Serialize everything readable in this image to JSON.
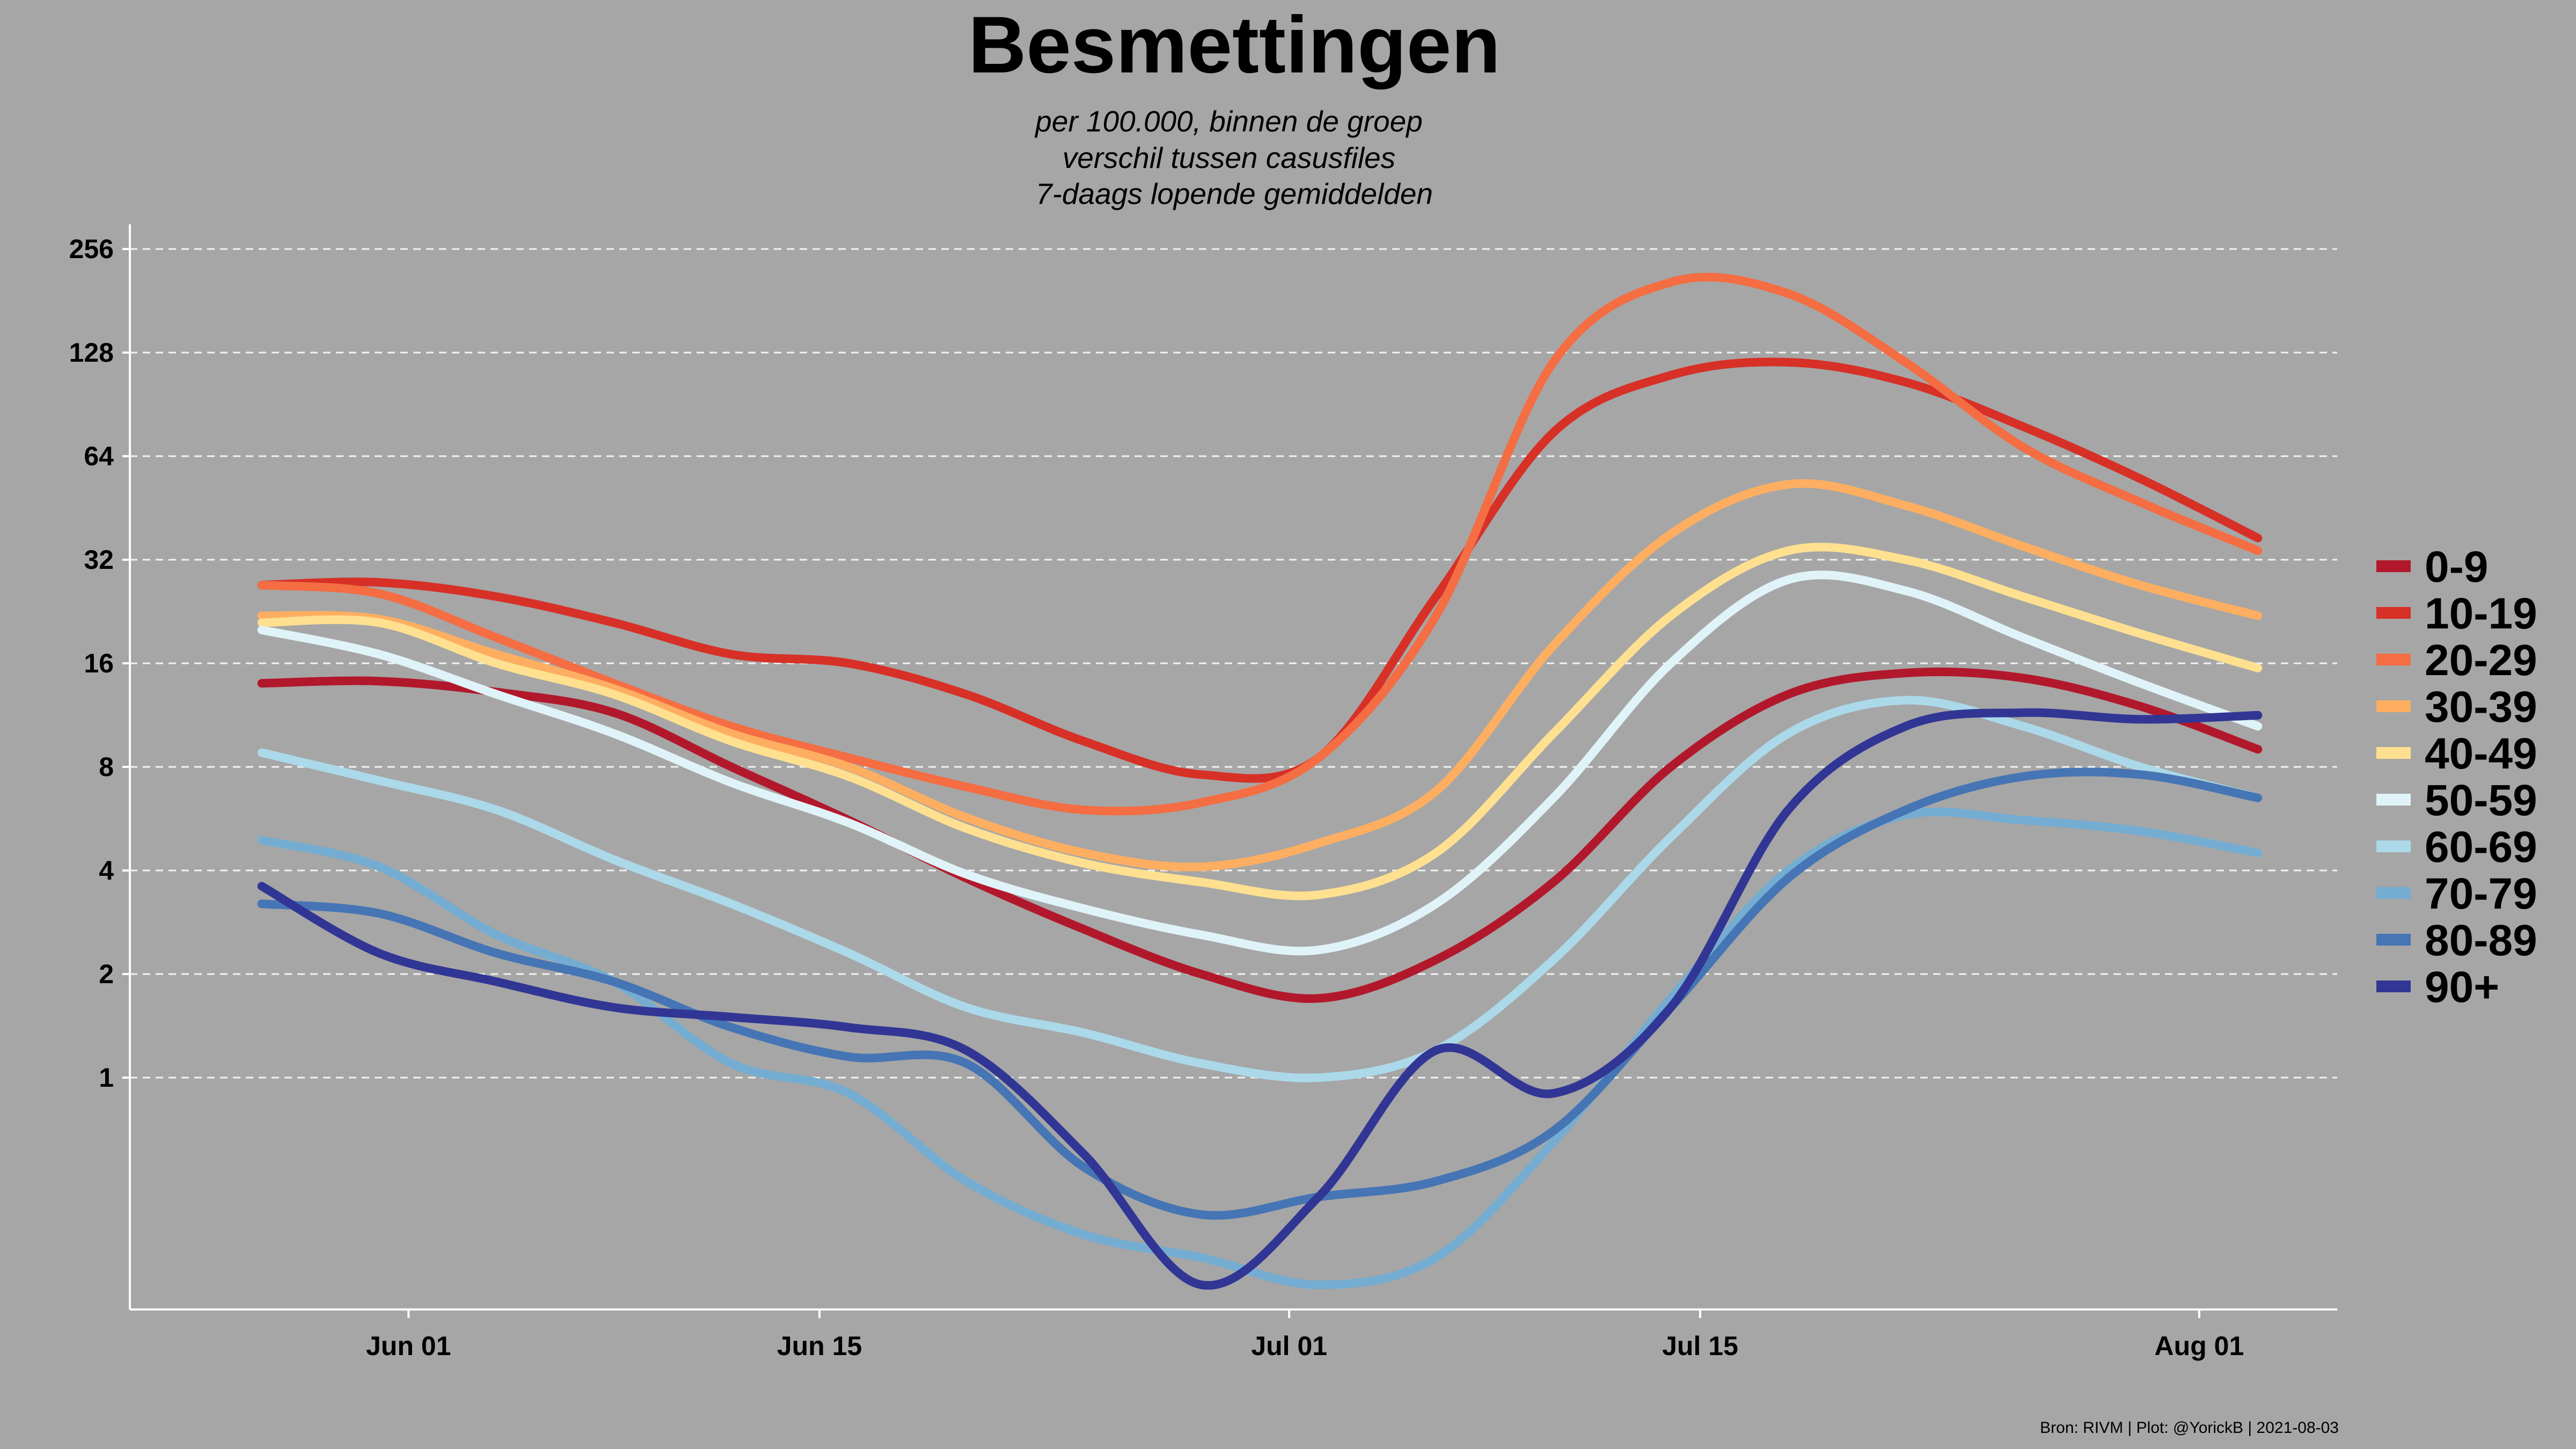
{
  "chart_data": {
    "type": "line",
    "title": "Besmettingen",
    "subtitle": [
      "per 100.000, binnen de groep",
      "verschil tussen casusfiles",
      "7-daags lopende gemiddelden"
    ],
    "caption": "Bron: RIVM | Plot: @YorickB  |  2021-08-03",
    "y_scale": "log2",
    "y_ticks": [
      1,
      2,
      4,
      8,
      16,
      32,
      64,
      128,
      256
    ],
    "y_tick_labels": [
      "1",
      "2",
      "4",
      "8",
      "16",
      "32",
      "64",
      "128",
      "256"
    ],
    "ylim": [
      0.1,
      320
    ],
    "x_start": "2021-05-26",
    "x_ticks": [
      {
        "date": "2021-06-01",
        "label": "Jun 01"
      },
      {
        "date": "2021-06-15",
        "label": "Jun 15"
      },
      {
        "date": "2021-07-01",
        "label": "Jul 01"
      },
      {
        "date": "2021-07-15",
        "label": "Jul 15"
      },
      {
        "date": "2021-08-01",
        "label": "Aug 01"
      }
    ],
    "xlim": [
      "2021-05-22",
      "2021-08-06"
    ],
    "grid": "horizontal dashed",
    "legend_position": "right",
    "x": [
      "2021-05-27",
      "2021-05-31",
      "2021-06-04",
      "2021-06-08",
      "2021-06-12",
      "2021-06-16",
      "2021-06-20",
      "2021-06-24",
      "2021-06-28",
      "2021-07-02",
      "2021-07-06",
      "2021-07-10",
      "2021-07-14",
      "2021-07-18",
      "2021-07-22",
      "2021-07-26",
      "2021-07-30",
      "2021-08-03"
    ],
    "series": [
      {
        "name": "0-9",
        "color": "#b2182b",
        "values": [
          14.0,
          14.2,
          13.2,
          11.5,
          8.0,
          5.6,
          3.8,
          2.7,
          2.0,
          1.7,
          2.2,
          3.7,
          8.0,
          13.0,
          15.0,
          14.5,
          12.0,
          9.0
        ]
      },
      {
        "name": "10-19",
        "color": "#d73027",
        "values": [
          27.0,
          27.5,
          25.0,
          21.0,
          17.0,
          16.0,
          13.0,
          9.5,
          7.6,
          8.5,
          25.0,
          75.0,
          110.0,
          120.0,
          105.0,
          78.0,
          55.0,
          37.0
        ]
      },
      {
        "name": "20-29",
        "color": "#f46d43",
        "values": [
          27.0,
          25.5,
          19.0,
          14.0,
          10.5,
          8.5,
          7.0,
          6.0,
          6.3,
          8.5,
          22.0,
          120.0,
          205.0,
          190.0,
          120.0,
          68.0,
          47.0,
          34.0
        ]
      },
      {
        "name": "30-39",
        "color": "#fdae61",
        "values": [
          22.0,
          21.5,
          17.0,
          13.5,
          10.0,
          8.0,
          5.7,
          4.5,
          4.1,
          4.8,
          6.8,
          18.0,
          38.0,
          53.0,
          46.0,
          35.0,
          27.0,
          22.0
        ]
      },
      {
        "name": "40-49",
        "color": "#fee090",
        "values": [
          21.0,
          21.0,
          16.0,
          13.0,
          9.5,
          7.5,
          5.3,
          4.2,
          3.7,
          3.4,
          4.5,
          10.0,
          22.0,
          34.0,
          32.0,
          25.0,
          19.5,
          15.5
        ]
      },
      {
        "name": "50-59",
        "color": "#e0f3f8",
        "values": [
          20.0,
          17.0,
          13.0,
          10.0,
          7.2,
          5.5,
          3.9,
          3.1,
          2.6,
          2.35,
          3.2,
          6.5,
          16.0,
          28.0,
          26.0,
          19.0,
          14.0,
          10.5
        ]
      },
      {
        "name": "60-69",
        "color": "#abd9e9",
        "values": [
          8.8,
          7.3,
          6.0,
          4.3,
          3.2,
          2.3,
          1.6,
          1.35,
          1.1,
          1.0,
          1.2,
          2.2,
          5.0,
          10.0,
          12.5,
          10.5,
          8.0,
          6.5
        ]
      },
      {
        "name": "70-79",
        "color": "#74add1",
        "values": [
          4.9,
          4.1,
          2.6,
          1.9,
          1.1,
          0.9,
          0.5,
          0.35,
          0.3,
          0.25,
          0.3,
          0.65,
          1.7,
          4.0,
          5.8,
          5.6,
          5.2,
          4.5
        ]
      },
      {
        "name": "80-89",
        "color": "#4575b4",
        "values": [
          3.2,
          3.0,
          2.3,
          1.9,
          1.4,
          1.15,
          1.1,
          0.55,
          0.4,
          0.45,
          0.5,
          0.7,
          1.6,
          3.8,
          6.0,
          7.5,
          7.6,
          6.5
        ]
      },
      {
        "name": "90+",
        "color": "#313695",
        "values": [
          3.6,
          2.3,
          1.9,
          1.6,
          1.5,
          1.4,
          1.2,
          0.6,
          0.25,
          0.45,
          1.2,
          0.9,
          1.6,
          6.0,
          10.5,
          11.5,
          11.0,
          11.3
        ]
      }
    ]
  }
}
